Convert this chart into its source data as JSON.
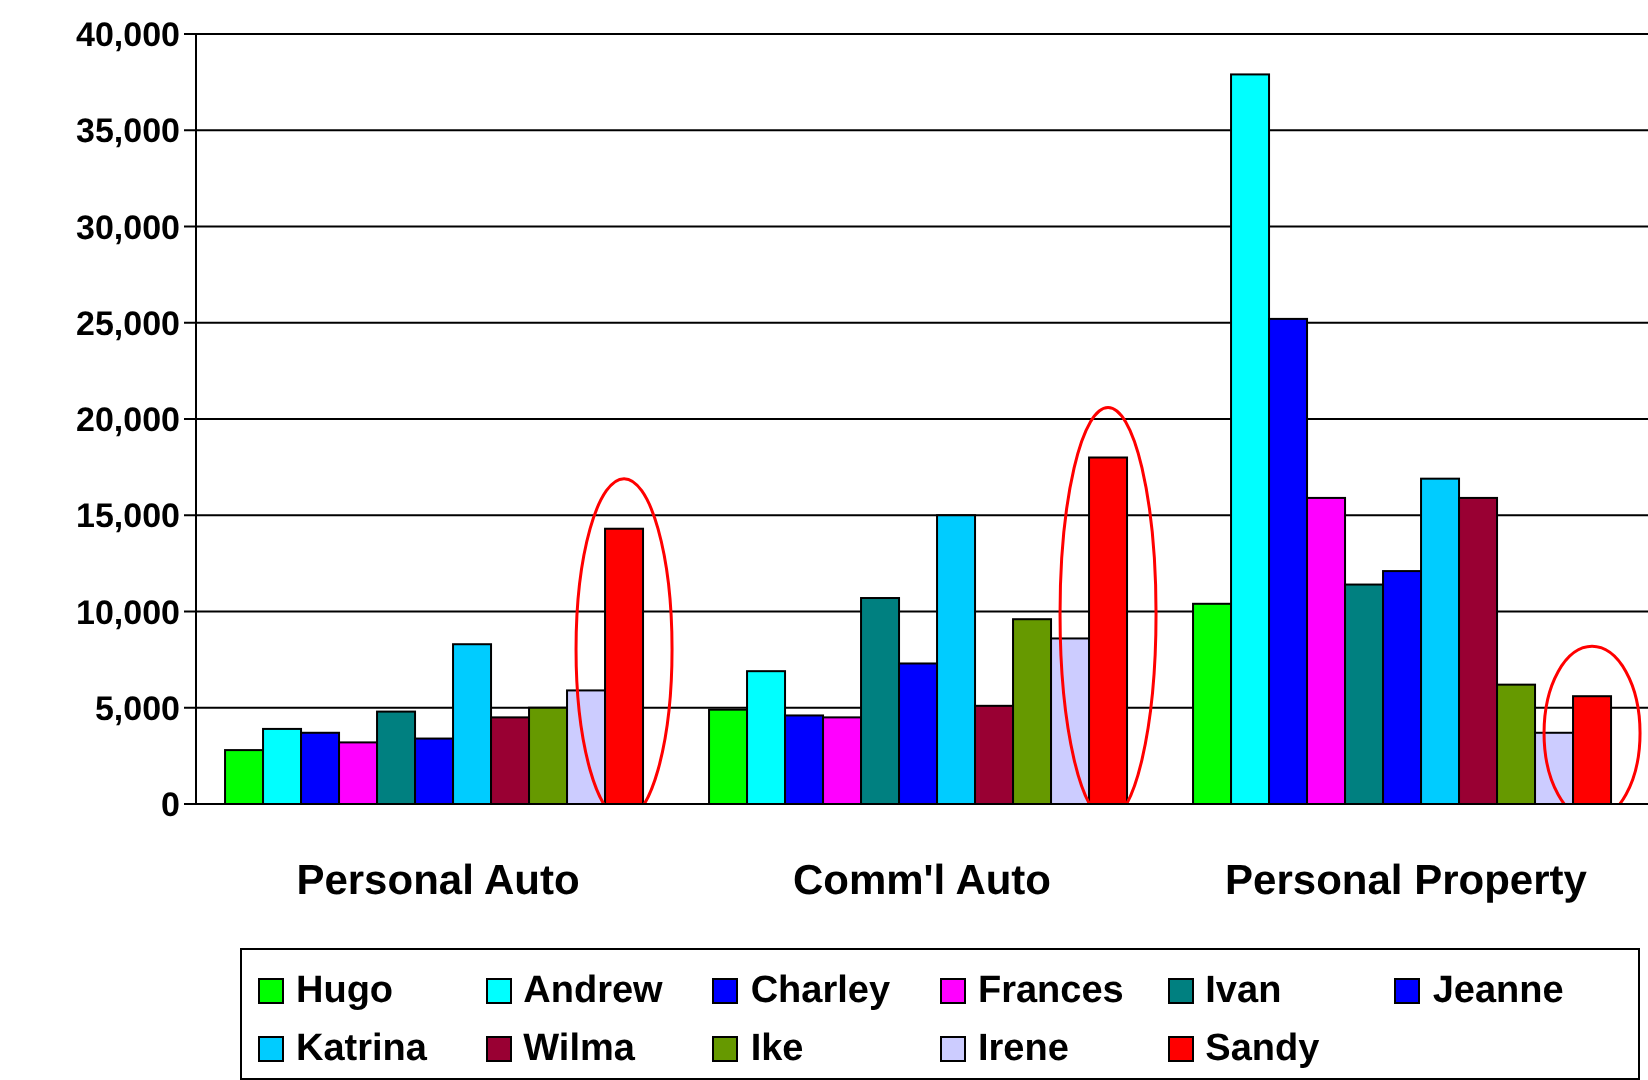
{
  "chart_data": {
    "type": "bar",
    "categories": [
      "Personal Auto",
      "Comm'l Auto",
      "Personal Property"
    ],
    "series": [
      {
        "name": "Hugo",
        "color": "#00ff00",
        "values": [
          2800,
          4900,
          10400
        ]
      },
      {
        "name": "Andrew",
        "color": "#00ffff",
        "values": [
          3900,
          6900,
          37900
        ]
      },
      {
        "name": "Charley",
        "color": "#0000ff",
        "values": [
          3700,
          4600,
          25200
        ]
      },
      {
        "name": "Frances",
        "color": "#ff00ff",
        "values": [
          3200,
          4500,
          15900
        ]
      },
      {
        "name": "Ivan",
        "color": "#008080",
        "values": [
          4800,
          10700,
          11400
        ]
      },
      {
        "name": "Jeanne",
        "color": "#0000ff",
        "values": [
          3400,
          7300,
          12100
        ]
      },
      {
        "name": "Katrina",
        "color": "#00ccff",
        "values": [
          8300,
          15000,
          16900
        ]
      },
      {
        "name": "Wilma",
        "color": "#990033",
        "values": [
          4500,
          5100,
          15900
        ]
      },
      {
        "name": "Ike",
        "color": "#669900",
        "values": [
          5000,
          9600,
          6200
        ]
      },
      {
        "name": "Irene",
        "color": "#ccccff",
        "values": [
          5900,
          8600,
          3700
        ]
      },
      {
        "name": "Sandy",
        "color": "#ff0000",
        "values": [
          14300,
          18000,
          5600
        ]
      }
    ],
    "ylim": [
      0,
      40000
    ],
    "yticks": [
      {
        "value": 0,
        "label": "0"
      },
      {
        "value": 5000,
        "label": "5,000"
      },
      {
        "value": 10000,
        "label": "10,000"
      },
      {
        "value": 15000,
        "label": "15,000"
      },
      {
        "value": 20000,
        "label": "20,000"
      },
      {
        "value": 25000,
        "label": "25,000"
      },
      {
        "value": 30000,
        "label": "30,000"
      },
      {
        "value": 35000,
        "label": "35,000"
      },
      {
        "value": 40000,
        "label": "40,000"
      }
    ],
    "grid": "y",
    "legend": "bottom"
  }
}
